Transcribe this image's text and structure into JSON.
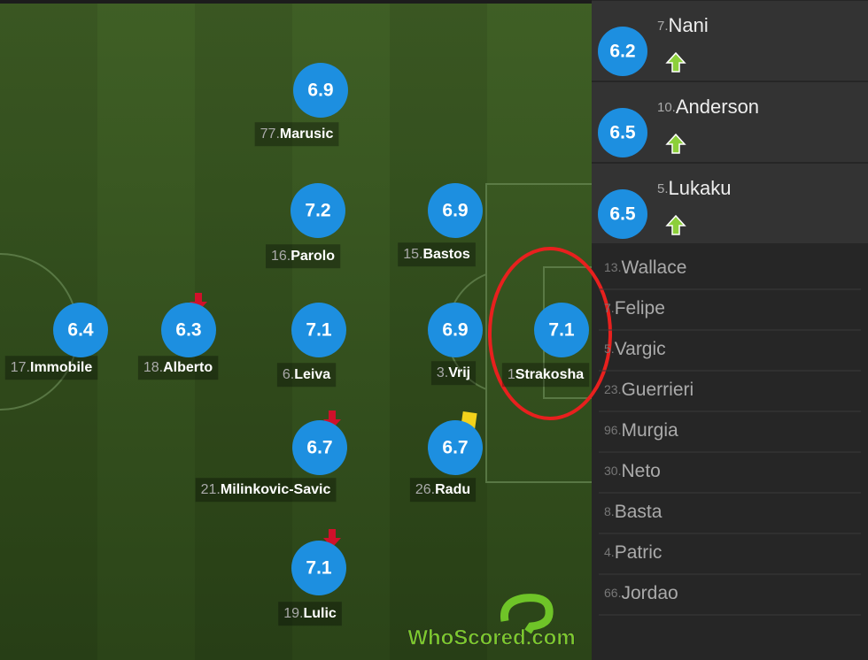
{
  "players": [
    {
      "number": "77.",
      "name": "Marusic",
      "rating": 6.9
    },
    {
      "number": "16.",
      "name": "Parolo",
      "rating": 7.2
    },
    {
      "number": "15.",
      "name": "Bastos",
      "rating": 6.9
    },
    {
      "number": "17.",
      "name": "Immobile",
      "rating": 6.4
    },
    {
      "number": "18.",
      "name": "Alberto",
      "rating": 6.3
    },
    {
      "number": "6.",
      "name": "Leiva",
      "rating": 7.1
    },
    {
      "number": "3.",
      "name": "Vrij",
      "rating": 6.9
    },
    {
      "number": "1",
      "name": "Strakosha",
      "rating": 7.1
    },
    {
      "number": "21.",
      "name": "Milinkovic-Savic",
      "rating": 6.7
    },
    {
      "number": "26.",
      "name": "Radu",
      "rating": 6.7
    },
    {
      "number": "19.",
      "name": "Lulic",
      "rating": 7.1
    }
  ],
  "substitutes_used": [
    {
      "number": "7.",
      "name": "Nani",
      "rating": 6.2
    },
    {
      "number": "10.",
      "name": "Anderson",
      "rating": 6.5
    },
    {
      "number": "5.",
      "name": "Lukaku",
      "rating": 6.5
    }
  ],
  "bench": [
    {
      "number": "13.",
      "name": "Wallace"
    },
    {
      "number": "7.",
      "name": "Felipe"
    },
    {
      "number": "5.",
      "name": "Vargic"
    },
    {
      "number": "23.",
      "name": "Guerrieri"
    },
    {
      "number": "96.",
      "name": "Murgia"
    },
    {
      "number": "30.",
      "name": "Neto"
    },
    {
      "number": "8.",
      "name": "Basta"
    },
    {
      "number": "4.",
      "name": "Patric"
    },
    {
      "number": "66.",
      "name": "Jordao"
    }
  ],
  "watermark": "WhoScored.com"
}
